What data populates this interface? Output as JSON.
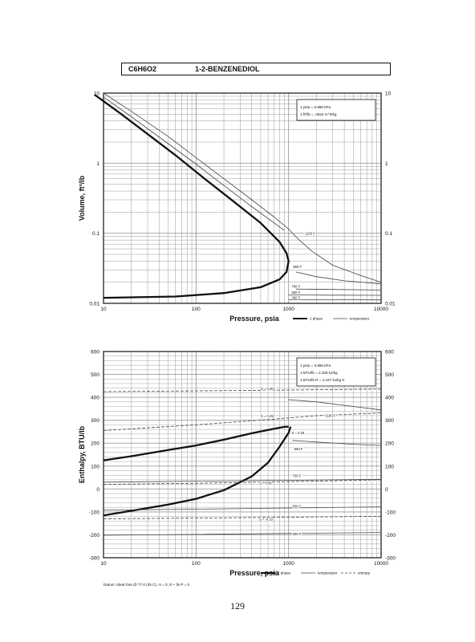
{
  "header": {
    "formula": "C6H6O2",
    "compound": "1-2-BENZENEDIOL"
  },
  "page_number": "129",
  "footnote": "Datum: Ideal Gas @ 77.0 (25 C), H = 0, S + fis P = 0",
  "colors": {
    "ink": "#111111",
    "grid": "#9a9a9a",
    "thin": "#444444",
    "background": "#ffffff"
  },
  "chart_data": [
    {
      "type": "line",
      "xscale": "log",
      "yscale": "log",
      "xlabel": "Pressure,  psia",
      "ylabel": "Volume,  ft^3/lb",
      "xlim": [
        10,
        10000
      ],
      "ylim": [
        0.01,
        10
      ],
      "x_ticks": [
        "10",
        "100",
        "1000",
        "10000"
      ],
      "y_ticks": [
        "10",
        "1",
        "0.1",
        "0.01"
      ],
      "conversion_box": [
        "1 psia  =  6.895 kPa",
        "1 ft^3/lb  =  .0624 m^3/kg"
      ],
      "legend": [
        "2 phase",
        "temperature"
      ],
      "legend_placement": "bottom-right",
      "series": [
        {
          "name": "2 phase",
          "style": "thick",
          "x": [
            8,
            15,
            30,
            60,
            120,
            250,
            500,
            800,
            950,
            1000,
            950,
            800,
            500,
            200,
            60,
            20,
            10
          ],
          "y": [
            9.5,
            5.2,
            2.6,
            1.3,
            0.62,
            0.29,
            0.14,
            0.075,
            0.052,
            0.04,
            0.028,
            0.022,
            0.017,
            0.014,
            0.0125,
            0.0122,
            0.012
          ]
        },
        {
          "name": "temperature",
          "style": "thin",
          "x": [
            10,
            20,
            50,
            100,
            200,
            400,
            700,
            1000,
            1300,
            1800,
            3000,
            6000,
            10000
          ],
          "y": [
            10,
            5.5,
            2.4,
            1.2,
            0.6,
            0.3,
            0.17,
            0.115,
            0.08,
            0.055,
            0.035,
            0.025,
            0.02
          ]
        },
        {
          "name": "temperature",
          "style": "thin",
          "x": [
            10,
            20,
            50,
            100,
            200,
            400,
            700,
            900
          ],
          "y": [
            8.8,
            4.6,
            1.9,
            0.97,
            0.48,
            0.24,
            0.14,
            0.11
          ]
        },
        {
          "name": "temperature",
          "style": "thin",
          "x": [
            1200,
            2000,
            4000,
            10000
          ],
          "y": [
            0.028,
            0.024,
            0.021,
            0.019
          ]
        },
        {
          "name": "temperature",
          "style": "thin",
          "x": [
            1200,
            3000,
            10000
          ],
          "y": [
            0.016,
            0.0158,
            0.0155
          ]
        },
        {
          "name": "temperature",
          "style": "thin",
          "x": [
            1000,
            3000,
            10000
          ],
          "y": [
            0.0132,
            0.0131,
            0.013
          ]
        },
        {
          "name": "temperature",
          "style": "thin",
          "x": [
            1000,
            3000,
            10000
          ],
          "y": [
            0.0113,
            0.0113,
            0.0112
          ]
        }
      ],
      "annotations": [
        {
          "text": "1100 F",
          "x": 1500,
          "y": 0.095
        },
        {
          "text": "900 F",
          "x": 1120,
          "y": 0.032
        },
        {
          "text": "700 F",
          "x": 1080,
          "y": 0.0168
        },
        {
          "text": "500 F",
          "x": 1080,
          "y": 0.0138
        },
        {
          "text": "300 F",
          "x": 1080,
          "y": 0.0116
        }
      ]
    },
    {
      "type": "line",
      "xscale": "log",
      "yscale": "linear",
      "xlabel": "Pressure,  psia",
      "ylabel": "Enthalpy, BTU/lb",
      "xlim": [
        10,
        10000
      ],
      "ylim": [
        -300,
        600
      ],
      "x_ticks": [
        "10",
        "100",
        "1000",
        "10000"
      ],
      "y_ticks": [
        "600",
        "500",
        "400",
        "300",
        "200",
        "100",
        "0",
        "-100",
        "-200",
        "-300"
      ],
      "conversion_box": [
        "1 psia  =  6.895 kPa",
        "1 BTU/lb  =  2.326 kJ/kg",
        "1 BTU/lb R  =  4.187 kJ/kg K"
      ],
      "legend": [
        "2 phase",
        "temperature",
        "entropy"
      ],
      "legend_placement": "bottom-right",
      "series": [
        {
          "name": "2 phase",
          "style": "thick",
          "x": [
            10,
            20,
            50,
            100,
            200,
            400,
            700,
            900,
            1000
          ],
          "y": [
            125,
            143,
            170,
            190,
            215,
            243,
            263,
            271,
            272
          ]
        },
        {
          "name": "2 phase",
          "style": "thick",
          "x": [
            10,
            20,
            50,
            100,
            200,
            400,
            600,
            800,
            1000,
            1050
          ],
          "y": [
            -115,
            -95,
            -68,
            -43,
            -5,
            55,
            115,
            185,
            245,
            272
          ]
        },
        {
          "name": "temperature",
          "style": "thin",
          "x": [
            1000,
            2000,
            5000,
            10000
          ],
          "y": [
            390,
            380,
            360,
            345
          ]
        },
        {
          "name": "temperature",
          "style": "thin",
          "x": [
            1100,
            2000,
            5000,
            10000
          ],
          "y": [
            212,
            205,
            195,
            190
          ]
        },
        {
          "name": "temperature",
          "style": "thin",
          "x": [
            10,
            100,
            1000,
            10000
          ],
          "y": [
            30,
            34,
            38,
            42
          ]
        },
        {
          "name": "temperature",
          "style": "thin",
          "x": [
            10,
            100,
            1000,
            10000
          ],
          "y": [
            -92,
            -88,
            -83,
            -78
          ]
        },
        {
          "name": "temperature",
          "style": "thin",
          "x": [
            10,
            100,
            1000,
            10000
          ],
          "y": [
            -202,
            -198,
            -194,
            -190
          ]
        },
        {
          "name": "entropy",
          "style": "dashed",
          "x": [
            10,
            100,
            1000,
            10000
          ],
          "y": [
            425,
            428,
            432,
            436
          ]
        },
        {
          "name": "entropy",
          "style": "dashed",
          "x": [
            10,
            100,
            700,
            2000,
            10000
          ],
          "y": [
            255,
            280,
            305,
            320,
            332
          ]
        },
        {
          "name": "entropy",
          "style": "dashed",
          "x": [
            10,
            100,
            1000,
            10000
          ],
          "y": [
            20,
            25,
            32,
            40
          ]
        },
        {
          "name": "entropy",
          "style": "dashed",
          "x": [
            10,
            100,
            1000,
            10000
          ],
          "y": [
            -130,
            -127,
            -123,
            -119
          ]
        }
      ],
      "annotations": [
        {
          "text": "S = 0.30",
          "x": 500,
          "y": 432
        },
        {
          "text": "S = 0.25",
          "x": 500,
          "y": 312
        },
        {
          "text": "S = 0.20",
          "x": 1080,
          "y": 240
        },
        {
          "text": "S = 0.05",
          "x": 480,
          "y": 20
        },
        {
          "text": "S = -0.15",
          "x": 480,
          "y": -138
        },
        {
          "text": "1100 F",
          "x": 2500,
          "y": 315
        },
        {
          "text": "900 F",
          "x": 1150,
          "y": 170
        },
        {
          "text": "700 F",
          "x": 1100,
          "y": 52
        },
        {
          "text": "500 F",
          "x": 1100,
          "y": -82
        },
        {
          "text": "300 F",
          "x": 1100,
          "y": -202
        }
      ]
    }
  ]
}
